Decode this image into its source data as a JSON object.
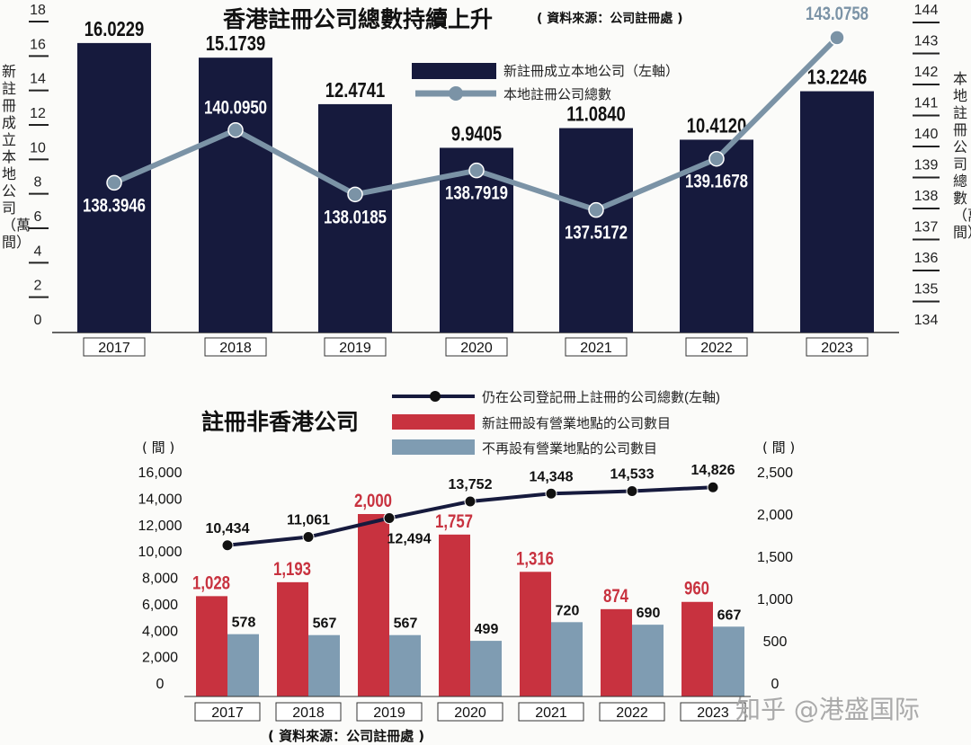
{
  "colors": {
    "navy": "#161a3d",
    "steel": "#7b93a6",
    "red": "#c8323f",
    "gray_blue": "#7f9cb2",
    "black": "#111111"
  },
  "watermark": "知乎 @港盛国际",
  "chart_data": [
    {
      "type": "bar",
      "title": "香港註冊公司總數持續上升",
      "source": "( 資料來源：公司註冊處 )",
      "categories": [
        "2017",
        "2018",
        "2019",
        "2020",
        "2021",
        "2022",
        "2023"
      ],
      "ylabel": "新註冊成立本地公司（萬間）",
      "y2label": "本地註冊公司總數（萬間）",
      "ylim": [
        0,
        18
      ],
      "y_ticks": [
        "0",
        "2",
        "4",
        "6",
        "8",
        "10",
        "12",
        "14",
        "16",
        "18"
      ],
      "y2lim": [
        134,
        144
      ],
      "y2_ticks": [
        "134",
        "135",
        "136",
        "137",
        "138",
        "139",
        "140",
        "141",
        "142",
        "143",
        "144"
      ],
      "legend_position": "top-center",
      "series": [
        {
          "name": "新註冊成立本地公司（左軸）",
          "type": "bar",
          "axis": "left",
          "values": [
            16.0229,
            15.1739,
            12.4741,
            9.9405,
            11.084,
            10.412,
            13.2246
          ],
          "labels": [
            "16.0229",
            "15.1739",
            "12.4741",
            "9.9405",
            "11.0840",
            "10.4120",
            "13.2246"
          ]
        },
        {
          "name": "本地註冊公司總數",
          "type": "line",
          "axis": "right",
          "values": [
            138.3946,
            140.095,
            138.0185,
            138.7919,
            137.5172,
            139.1678,
            143.0758
          ],
          "labels": [
            "138.3946",
            "140.0950",
            "138.0185",
            "138.7919",
            "137.5172",
            "139.1678",
            "143.0758"
          ]
        }
      ]
    },
    {
      "type": "bar",
      "title": "註冊非香港公司",
      "source": "( 資料來源：公司註冊處 )",
      "categories": [
        "2017",
        "2018",
        "2019",
        "2020",
        "2021",
        "2022",
        "2023"
      ],
      "ylabel": "( 間 )",
      "y2label": "( 間 )",
      "ylim": [
        0,
        16000
      ],
      "y_ticks": [
        "0",
        "2,000",
        "4,000",
        "6,000",
        "8,000",
        "10,000",
        "12,000",
        "14,000",
        "16,000"
      ],
      "y2lim": [
        0,
        2500
      ],
      "y2_ticks": [
        "0",
        "500",
        "1,000",
        "1,500",
        "2,000",
        "2,500"
      ],
      "legend_position": "top-center",
      "series": [
        {
          "name": "仍在公司登記冊上註冊的公司總數(左軸)",
          "type": "line",
          "axis": "left",
          "values": [
            10434,
            11061,
            12494,
            13752,
            14348,
            14533,
            14826
          ],
          "labels": [
            "10,434",
            "11,061",
            "12,494",
            "13,752",
            "14,348",
            "14,533",
            "14,826"
          ]
        },
        {
          "name": "新註冊設有營業地點的公司數目",
          "type": "bar",
          "axis": "right",
          "values": [
            1028,
            1193,
            2000,
            1757,
            1316,
            874,
            960
          ],
          "labels": [
            "1,028",
            "1,193",
            "2,000",
            "1,757",
            "1,316",
            "874",
            "960"
          ]
        },
        {
          "name": "不再設有營業地點的公司數目",
          "type": "bar",
          "axis": "right",
          "values": [
            578,
            567,
            567,
            499,
            720,
            690,
            667
          ],
          "labels": [
            "578",
            "567",
            "567",
            "499",
            "720",
            "690",
            "667"
          ]
        }
      ]
    }
  ]
}
